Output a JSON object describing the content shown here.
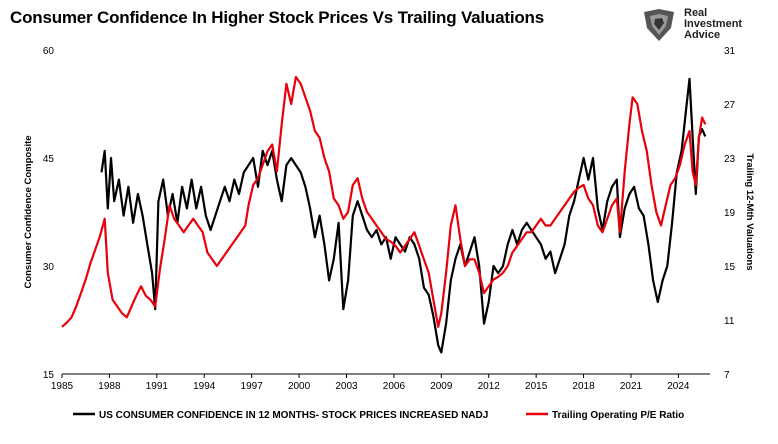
{
  "brand": {
    "line1": "Real",
    "line2": "Investment",
    "line3": "Advice"
  },
  "chart_data": {
    "type": "line",
    "title": "Consumer Confidence In Higher Stock Prices Vs Trailing Valuations",
    "xlim": [
      1985,
      2026
    ],
    "x_ticks": [
      "1985",
      "1988",
      "1991",
      "1994",
      "1997",
      "2000",
      "2003",
      "2006",
      "2009",
      "2012",
      "2015",
      "2018",
      "2021",
      "2024"
    ],
    "y_left": {
      "label": "Consumer Confidence Composite",
      "lim": [
        15,
        60
      ],
      "ticks": [
        "15",
        "30",
        "45",
        "60"
      ]
    },
    "y_right": {
      "label": "Trailing 12-Mth Valuations",
      "lim": [
        7,
        31
      ],
      "ticks": [
        "7",
        "11",
        "15",
        "19",
        "23",
        "27",
        "31"
      ]
    },
    "grid": false,
    "legend_position": "bottom",
    "series": [
      {
        "name": "US CONSUMER CONFIDENCE IN 12 MONTHS- STOCK PRICES INCREASED NADJ",
        "axis": "left",
        "color": "#000000",
        "points": [
          [
            1987.5,
            43
          ],
          [
            1987.7,
            46
          ],
          [
            1987.9,
            38
          ],
          [
            1988.1,
            45
          ],
          [
            1988.3,
            39
          ],
          [
            1988.6,
            42
          ],
          [
            1988.9,
            37
          ],
          [
            1989.2,
            41
          ],
          [
            1989.5,
            36
          ],
          [
            1989.8,
            40
          ],
          [
            1990.1,
            37
          ],
          [
            1990.4,
            33
          ],
          [
            1990.7,
            29
          ],
          [
            1990.9,
            24
          ],
          [
            1991.1,
            39
          ],
          [
            1991.4,
            42
          ],
          [
            1991.7,
            37
          ],
          [
            1992.0,
            40
          ],
          [
            1992.3,
            36
          ],
          [
            1992.6,
            41
          ],
          [
            1992.9,
            38
          ],
          [
            1993.2,
            42
          ],
          [
            1993.5,
            38
          ],
          [
            1993.8,
            41
          ],
          [
            1994.1,
            37
          ],
          [
            1994.4,
            35
          ],
          [
            1994.7,
            37
          ],
          [
            1995.0,
            39
          ],
          [
            1995.3,
            41
          ],
          [
            1995.6,
            39
          ],
          [
            1995.9,
            42
          ],
          [
            1996.2,
            40
          ],
          [
            1996.5,
            43
          ],
          [
            1996.8,
            44
          ],
          [
            1997.1,
            45
          ],
          [
            1997.4,
            41
          ],
          [
            1997.7,
            46
          ],
          [
            1998.0,
            44
          ],
          [
            1998.3,
            46
          ],
          [
            1998.6,
            42
          ],
          [
            1998.9,
            39
          ],
          [
            1999.2,
            44
          ],
          [
            1999.5,
            45
          ],
          [
            1999.8,
            44
          ],
          [
            2000.1,
            43
          ],
          [
            2000.4,
            41
          ],
          [
            2000.7,
            38
          ],
          [
            2001.0,
            34
          ],
          [
            2001.3,
            37
          ],
          [
            2001.6,
            33
          ],
          [
            2001.9,
            28
          ],
          [
            2002.2,
            31
          ],
          [
            2002.5,
            36
          ],
          [
            2002.8,
            24
          ],
          [
            2003.1,
            28
          ],
          [
            2003.4,
            37
          ],
          [
            2003.7,
            39
          ],
          [
            2004.0,
            37
          ],
          [
            2004.3,
            35
          ],
          [
            2004.6,
            34
          ],
          [
            2004.9,
            35
          ],
          [
            2005.2,
            33
          ],
          [
            2005.5,
            34
          ],
          [
            2005.8,
            31
          ],
          [
            2006.1,
            34
          ],
          [
            2006.4,
            33
          ],
          [
            2006.7,
            32
          ],
          [
            2007.0,
            34
          ],
          [
            2007.3,
            33
          ],
          [
            2007.6,
            31
          ],
          [
            2007.9,
            27
          ],
          [
            2008.2,
            26
          ],
          [
            2008.5,
            23
          ],
          [
            2008.8,
            19
          ],
          [
            2009.0,
            18
          ],
          [
            2009.3,
            22
          ],
          [
            2009.6,
            28
          ],
          [
            2009.9,
            31
          ],
          [
            2010.2,
            33
          ],
          [
            2010.5,
            30
          ],
          [
            2010.8,
            32
          ],
          [
            2011.1,
            34
          ],
          [
            2011.4,
            30
          ],
          [
            2011.7,
            22
          ],
          [
            2012.0,
            25
          ],
          [
            2012.3,
            30
          ],
          [
            2012.6,
            29
          ],
          [
            2012.9,
            30
          ],
          [
            2013.2,
            33
          ],
          [
            2013.5,
            35
          ],
          [
            2013.8,
            33
          ],
          [
            2014.1,
            35
          ],
          [
            2014.4,
            36
          ],
          [
            2014.7,
            35
          ],
          [
            2015.0,
            34
          ],
          [
            2015.3,
            33
          ],
          [
            2015.6,
            31
          ],
          [
            2015.9,
            32
          ],
          [
            2016.2,
            29
          ],
          [
            2016.5,
            31
          ],
          [
            2016.8,
            33
          ],
          [
            2017.1,
            37
          ],
          [
            2017.4,
            39
          ],
          [
            2017.7,
            42
          ],
          [
            2018.0,
            45
          ],
          [
            2018.3,
            42
          ],
          [
            2018.6,
            45
          ],
          [
            2018.9,
            38
          ],
          [
            2019.2,
            35
          ],
          [
            2019.5,
            39
          ],
          [
            2019.8,
            41
          ],
          [
            2020.1,
            42
          ],
          [
            2020.3,
            34
          ],
          [
            2020.6,
            38
          ],
          [
            2020.9,
            40
          ],
          [
            2021.2,
            41
          ],
          [
            2021.5,
            38
          ],
          [
            2021.8,
            37
          ],
          [
            2022.1,
            33
          ],
          [
            2022.4,
            28
          ],
          [
            2022.7,
            25
          ],
          [
            2023.0,
            28
          ],
          [
            2023.3,
            30
          ],
          [
            2023.6,
            36
          ],
          [
            2023.9,
            43
          ],
          [
            2024.2,
            46
          ],
          [
            2024.5,
            52
          ],
          [
            2024.7,
            56
          ],
          [
            2024.9,
            48
          ],
          [
            2025.1,
            40
          ],
          [
            2025.3,
            48
          ],
          [
            2025.5,
            49
          ],
          [
            2025.7,
            48
          ]
        ]
      },
      {
        "name": "Trailing Operating P/E Ratio",
        "axis": "right",
        "color": "#e8000b",
        "points": [
          [
            1985.0,
            10.5
          ],
          [
            1985.3,
            10.8
          ],
          [
            1985.6,
            11.2
          ],
          [
            1985.9,
            12.0
          ],
          [
            1986.2,
            13.0
          ],
          [
            1986.5,
            14.0
          ],
          [
            1986.8,
            15.2
          ],
          [
            1987.1,
            16.2
          ],
          [
            1987.4,
            17.2
          ],
          [
            1987.7,
            18.5
          ],
          [
            1987.9,
            14.5
          ],
          [
            1988.2,
            12.5
          ],
          [
            1988.5,
            12.0
          ],
          [
            1988.8,
            11.5
          ],
          [
            1989.1,
            11.2
          ],
          [
            1989.4,
            12.0
          ],
          [
            1989.7,
            12.8
          ],
          [
            1990.0,
            13.5
          ],
          [
            1990.3,
            12.8
          ],
          [
            1990.6,
            12.5
          ],
          [
            1990.9,
            12.0
          ],
          [
            1991.2,
            14.8
          ],
          [
            1991.5,
            17.0
          ],
          [
            1991.8,
            19.5
          ],
          [
            1992.1,
            18.5
          ],
          [
            1992.4,
            18.0
          ],
          [
            1992.7,
            17.5
          ],
          [
            1993.0,
            18.0
          ],
          [
            1993.3,
            18.5
          ],
          [
            1993.6,
            18.0
          ],
          [
            1993.9,
            17.5
          ],
          [
            1994.2,
            16.0
          ],
          [
            1994.5,
            15.5
          ],
          [
            1994.8,
            15.0
          ],
          [
            1995.1,
            15.5
          ],
          [
            1995.4,
            16.0
          ],
          [
            1995.7,
            16.5
          ],
          [
            1996.0,
            17.0
          ],
          [
            1996.3,
            17.5
          ],
          [
            1996.6,
            18.0
          ],
          [
            1996.8,
            19.5
          ],
          [
            1997.1,
            21.0
          ],
          [
            1997.4,
            21.5
          ],
          [
            1997.7,
            22.5
          ],
          [
            1998.0,
            23.5
          ],
          [
            1998.3,
            24.0
          ],
          [
            1998.6,
            22.0
          ],
          [
            1998.9,
            25.5
          ],
          [
            1999.2,
            28.5
          ],
          [
            1999.5,
            27.0
          ],
          [
            1999.8,
            29.0
          ],
          [
            2000.1,
            28.5
          ],
          [
            2000.4,
            27.5
          ],
          [
            2000.7,
            26.5
          ],
          [
            2001.0,
            25.0
          ],
          [
            2001.3,
            24.5
          ],
          [
            2001.6,
            23.0
          ],
          [
            2001.9,
            22.0
          ],
          [
            2002.2,
            20.0
          ],
          [
            2002.5,
            19.5
          ],
          [
            2002.8,
            18.5
          ],
          [
            2003.1,
            19.0
          ],
          [
            2003.4,
            21.0
          ],
          [
            2003.7,
            21.5
          ],
          [
            2004.0,
            20.0
          ],
          [
            2004.3,
            19.0
          ],
          [
            2004.6,
            18.5
          ],
          [
            2004.9,
            18.0
          ],
          [
            2005.2,
            17.5
          ],
          [
            2005.5,
            17.0
          ],
          [
            2005.8,
            16.8
          ],
          [
            2006.1,
            16.5
          ],
          [
            2006.4,
            16.0
          ],
          [
            2006.7,
            16.5
          ],
          [
            2007.0,
            17.0
          ],
          [
            2007.3,
            17.5
          ],
          [
            2007.6,
            16.5
          ],
          [
            2007.9,
            15.5
          ],
          [
            2008.2,
            14.5
          ],
          [
            2008.5,
            12.5
          ],
          [
            2008.8,
            10.5
          ],
          [
            2009.0,
            11.5
          ],
          [
            2009.3,
            14.5
          ],
          [
            2009.6,
            18.0
          ],
          [
            2009.9,
            19.5
          ],
          [
            2010.2,
            17.0
          ],
          [
            2010.5,
            15.0
          ],
          [
            2010.8,
            15.5
          ],
          [
            2011.1,
            15.5
          ],
          [
            2011.4,
            14.5
          ],
          [
            2011.7,
            13.0
          ],
          [
            2012.0,
            13.5
          ],
          [
            2012.3,
            14.0
          ],
          [
            2012.6,
            14.2
          ],
          [
            2012.9,
            14.5
          ],
          [
            2013.2,
            15.0
          ],
          [
            2013.5,
            16.0
          ],
          [
            2013.8,
            16.5
          ],
          [
            2014.1,
            17.0
          ],
          [
            2014.4,
            17.5
          ],
          [
            2014.7,
            17.5
          ],
          [
            2015.0,
            18.0
          ],
          [
            2015.3,
            18.5
          ],
          [
            2015.6,
            18.0
          ],
          [
            2015.9,
            18.0
          ],
          [
            2016.2,
            18.5
          ],
          [
            2016.5,
            19.0
          ],
          [
            2016.8,
            19.5
          ],
          [
            2017.1,
            20.0
          ],
          [
            2017.4,
            20.5
          ],
          [
            2017.7,
            20.8
          ],
          [
            2018.0,
            21.0
          ],
          [
            2018.3,
            20.0
          ],
          [
            2018.6,
            19.5
          ],
          [
            2018.9,
            18.0
          ],
          [
            2019.2,
            17.5
          ],
          [
            2019.5,
            18.5
          ],
          [
            2019.8,
            19.5
          ],
          [
            2020.1,
            20.0
          ],
          [
            2020.3,
            17.5
          ],
          [
            2020.6,
            22.0
          ],
          [
            2020.9,
            25.5
          ],
          [
            2021.1,
            27.5
          ],
          [
            2021.4,
            27.0
          ],
          [
            2021.7,
            25.0
          ],
          [
            2022.0,
            23.5
          ],
          [
            2022.3,
            21.0
          ],
          [
            2022.6,
            19.0
          ],
          [
            2022.9,
            18.0
          ],
          [
            2023.2,
            19.5
          ],
          [
            2023.5,
            21.0
          ],
          [
            2023.8,
            21.5
          ],
          [
            2024.1,
            22.5
          ],
          [
            2024.4,
            24.0
          ],
          [
            2024.7,
            25.0
          ],
          [
            2024.9,
            22.0
          ],
          [
            2025.1,
            21.0
          ],
          [
            2025.3,
            24.5
          ],
          [
            2025.5,
            26.0
          ],
          [
            2025.7,
            25.5
          ]
        ]
      }
    ]
  }
}
